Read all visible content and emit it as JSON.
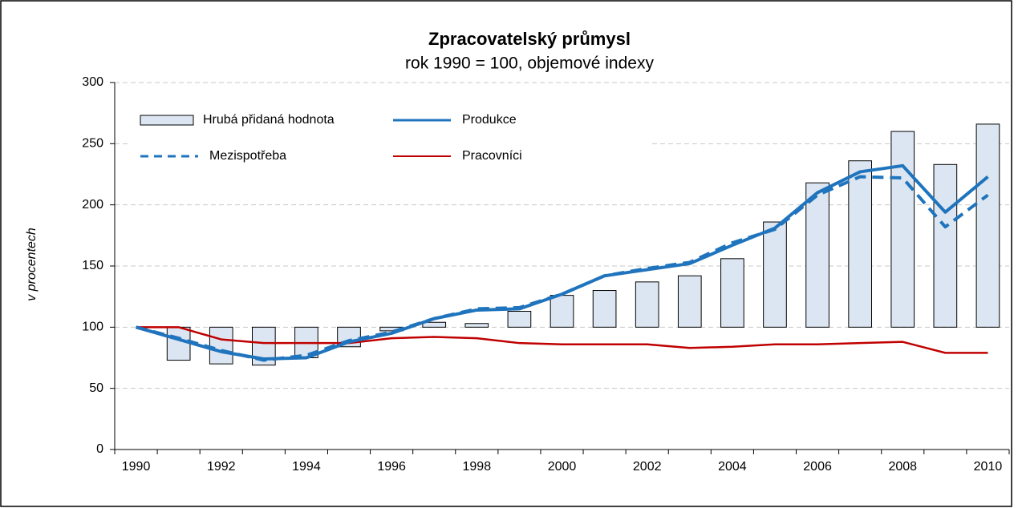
{
  "chart_data": {
    "type": "bar_line",
    "title": "Zpracovatelský průmysl",
    "subtitle": "rok 1990 = 100, objemové indexy",
    "y_label": "v procentech",
    "categories": [
      "1990",
      null,
      "1992",
      null,
      "1994",
      null,
      "1996",
      null,
      "1998",
      null,
      "2000",
      null,
      "2002",
      null,
      "2004",
      null,
      "2006",
      null,
      "2008",
      null,
      "2010"
    ],
    "bar_base": 100,
    "series": [
      {
        "name": "Hrubá přidaná hodnota",
        "kind": "bar",
        "color": "#dce6f2",
        "values": [
          100,
          73,
          70,
          69,
          75,
          84,
          97,
          104,
          103,
          113,
          126,
          130,
          137,
          142,
          156,
          186,
          218,
          236,
          260,
          233,
          266
        ]
      },
      {
        "name": "Produkce",
        "kind": "line",
        "color": "#1f74bd",
        "values": [
          100,
          90,
          80,
          74,
          75,
          88,
          95,
          107,
          114,
          115,
          127,
          142,
          147,
          152,
          167,
          181,
          210,
          227,
          232,
          194,
          223
        ]
      },
      {
        "name": "Mezispotřeba",
        "kind": "dashed",
        "color": "#1f74bd",
        "values": [
          100,
          91,
          81,
          73,
          77,
          89,
          96,
          107,
          115,
          116,
          127,
          142,
          148,
          153,
          169,
          180,
          208,
          223,
          222,
          182,
          208
        ]
      },
      {
        "name": "Pracovníci",
        "kind": "line-thin",
        "color": "#c00000",
        "values": [
          100,
          100,
          90,
          87,
          87,
          87,
          91,
          92,
          91,
          87,
          86,
          86,
          86,
          83,
          84,
          86,
          86,
          87,
          88,
          79,
          79
        ]
      }
    ],
    "ylim": [
      0,
      300
    ],
    "yticks": [
      0,
      50,
      100,
      150,
      200,
      250,
      300
    ],
    "grid": true,
    "legend": "top-left"
  }
}
